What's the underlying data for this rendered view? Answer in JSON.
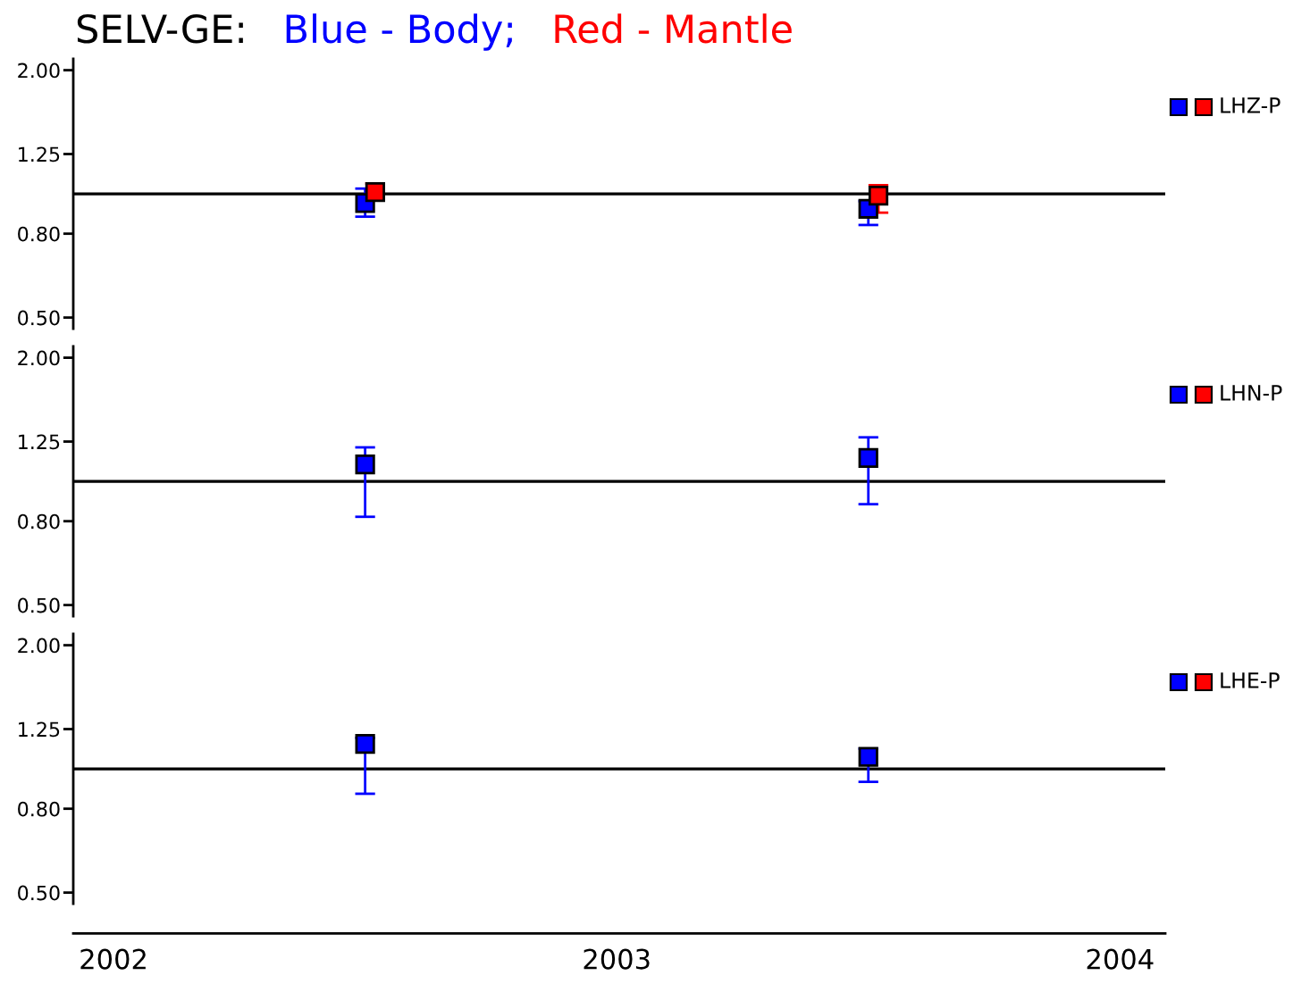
{
  "chart_data": [
    {
      "type": "scatter",
      "title": "SELV-GE:",
      "annotations": [
        "LHZ-P"
      ],
      "marker": "square",
      "log": "y",
      "tick_labels": "y",
      "series": [
        {
          "name": "Blue - Body;",
          "color": "#0000ff",
          "x": [
            2002.5,
            2003.5
          ],
          "values": [
            0.95,
            0.92
          ],
          "errors": [
            [
              0.88,
              1.03
            ],
            [
              0.84,
              0.96
            ]
          ]
        },
        {
          "name": "Red - Mantle",
          "color": "#ff0000",
          "x": [
            2002.52,
            2003.52
          ],
          "values": [
            1.01,
            0.99
          ],
          "errors": [
            [
              0.97,
              1.06
            ],
            [
              0.9,
              1.05
            ]
          ]
        }
      ],
      "ref_lines": [
        {
          "axis": "y",
          "value": 1
        }
      ],
      "xlim": [
        2001.92,
        2004.09
      ],
      "xticks": [
        2002,
        2003,
        2004
      ],
      "ylim": [
        0.47,
        2.13
      ],
      "yticks": [
        {
          "value": 0.5,
          "label": "0.50"
        },
        {
          "value": 0.8,
          "label": "0.80"
        },
        {
          "value": 1.25,
          "label": "1.25"
        },
        {
          "value": 2,
          "label": "2.00"
        }
      ]
    },
    {
      "type": "scatter",
      "annotations": [
        "LHN-P"
      ],
      "marker": "square",
      "log": "y",
      "tick_labels": "y",
      "series": [
        {
          "color": "#0000ff",
          "x": [
            2002.5,
            2003.5
          ],
          "values": [
            1.1,
            1.14
          ],
          "errors": [
            [
              0.82,
              1.21
            ],
            [
              0.88,
              1.28
            ]
          ]
        },
        {
          "color": "#ff0000",
          "values": [
            null,
            null
          ]
        }
      ],
      "ref_lines": [
        {
          "axis": "y",
          "value": 1
        }
      ],
      "xlim": [
        2001.92,
        2004.09
      ],
      "xticks": [
        2002,
        2003,
        2004
      ],
      "ylim": [
        0.47,
        2.13
      ],
      "yticks": [
        {
          "value": 0.5,
          "label": "0.50"
        },
        {
          "value": 0.8,
          "label": "0.80"
        },
        {
          "value": 1.25,
          "label": "1.25"
        },
        {
          "value": 2,
          "label": "2.00"
        }
      ]
    },
    {
      "type": "scatter",
      "annotations": [
        "LHE-P"
      ],
      "marker": "square",
      "log": "y",
      "series": [
        {
          "color": "#0000ff",
          "x": [
            2002.5,
            2003.5
          ],
          "values": [
            1.15,
            1.07
          ],
          "errors": [
            [
              0.87,
              1.19
            ],
            [
              0.93,
              1.12
            ]
          ]
        },
        {
          "color": "#ff0000",
          "values": [
            null,
            null
          ]
        }
      ],
      "ref_lines": [
        {
          "axis": "y",
          "value": 1
        }
      ],
      "xlim": [
        2001.92,
        2004.09
      ],
      "xticks": [
        2002,
        2003,
        2004
      ],
      "ylim": [
        0.47,
        2.13
      ],
      "yticks": [
        {
          "value": 0.5,
          "label": "0.50"
        },
        {
          "value": 0.8,
          "label": "0.80"
        },
        {
          "value": 1.25,
          "label": "1.25"
        },
        {
          "value": 2,
          "label": "2.00"
        }
      ]
    }
  ]
}
